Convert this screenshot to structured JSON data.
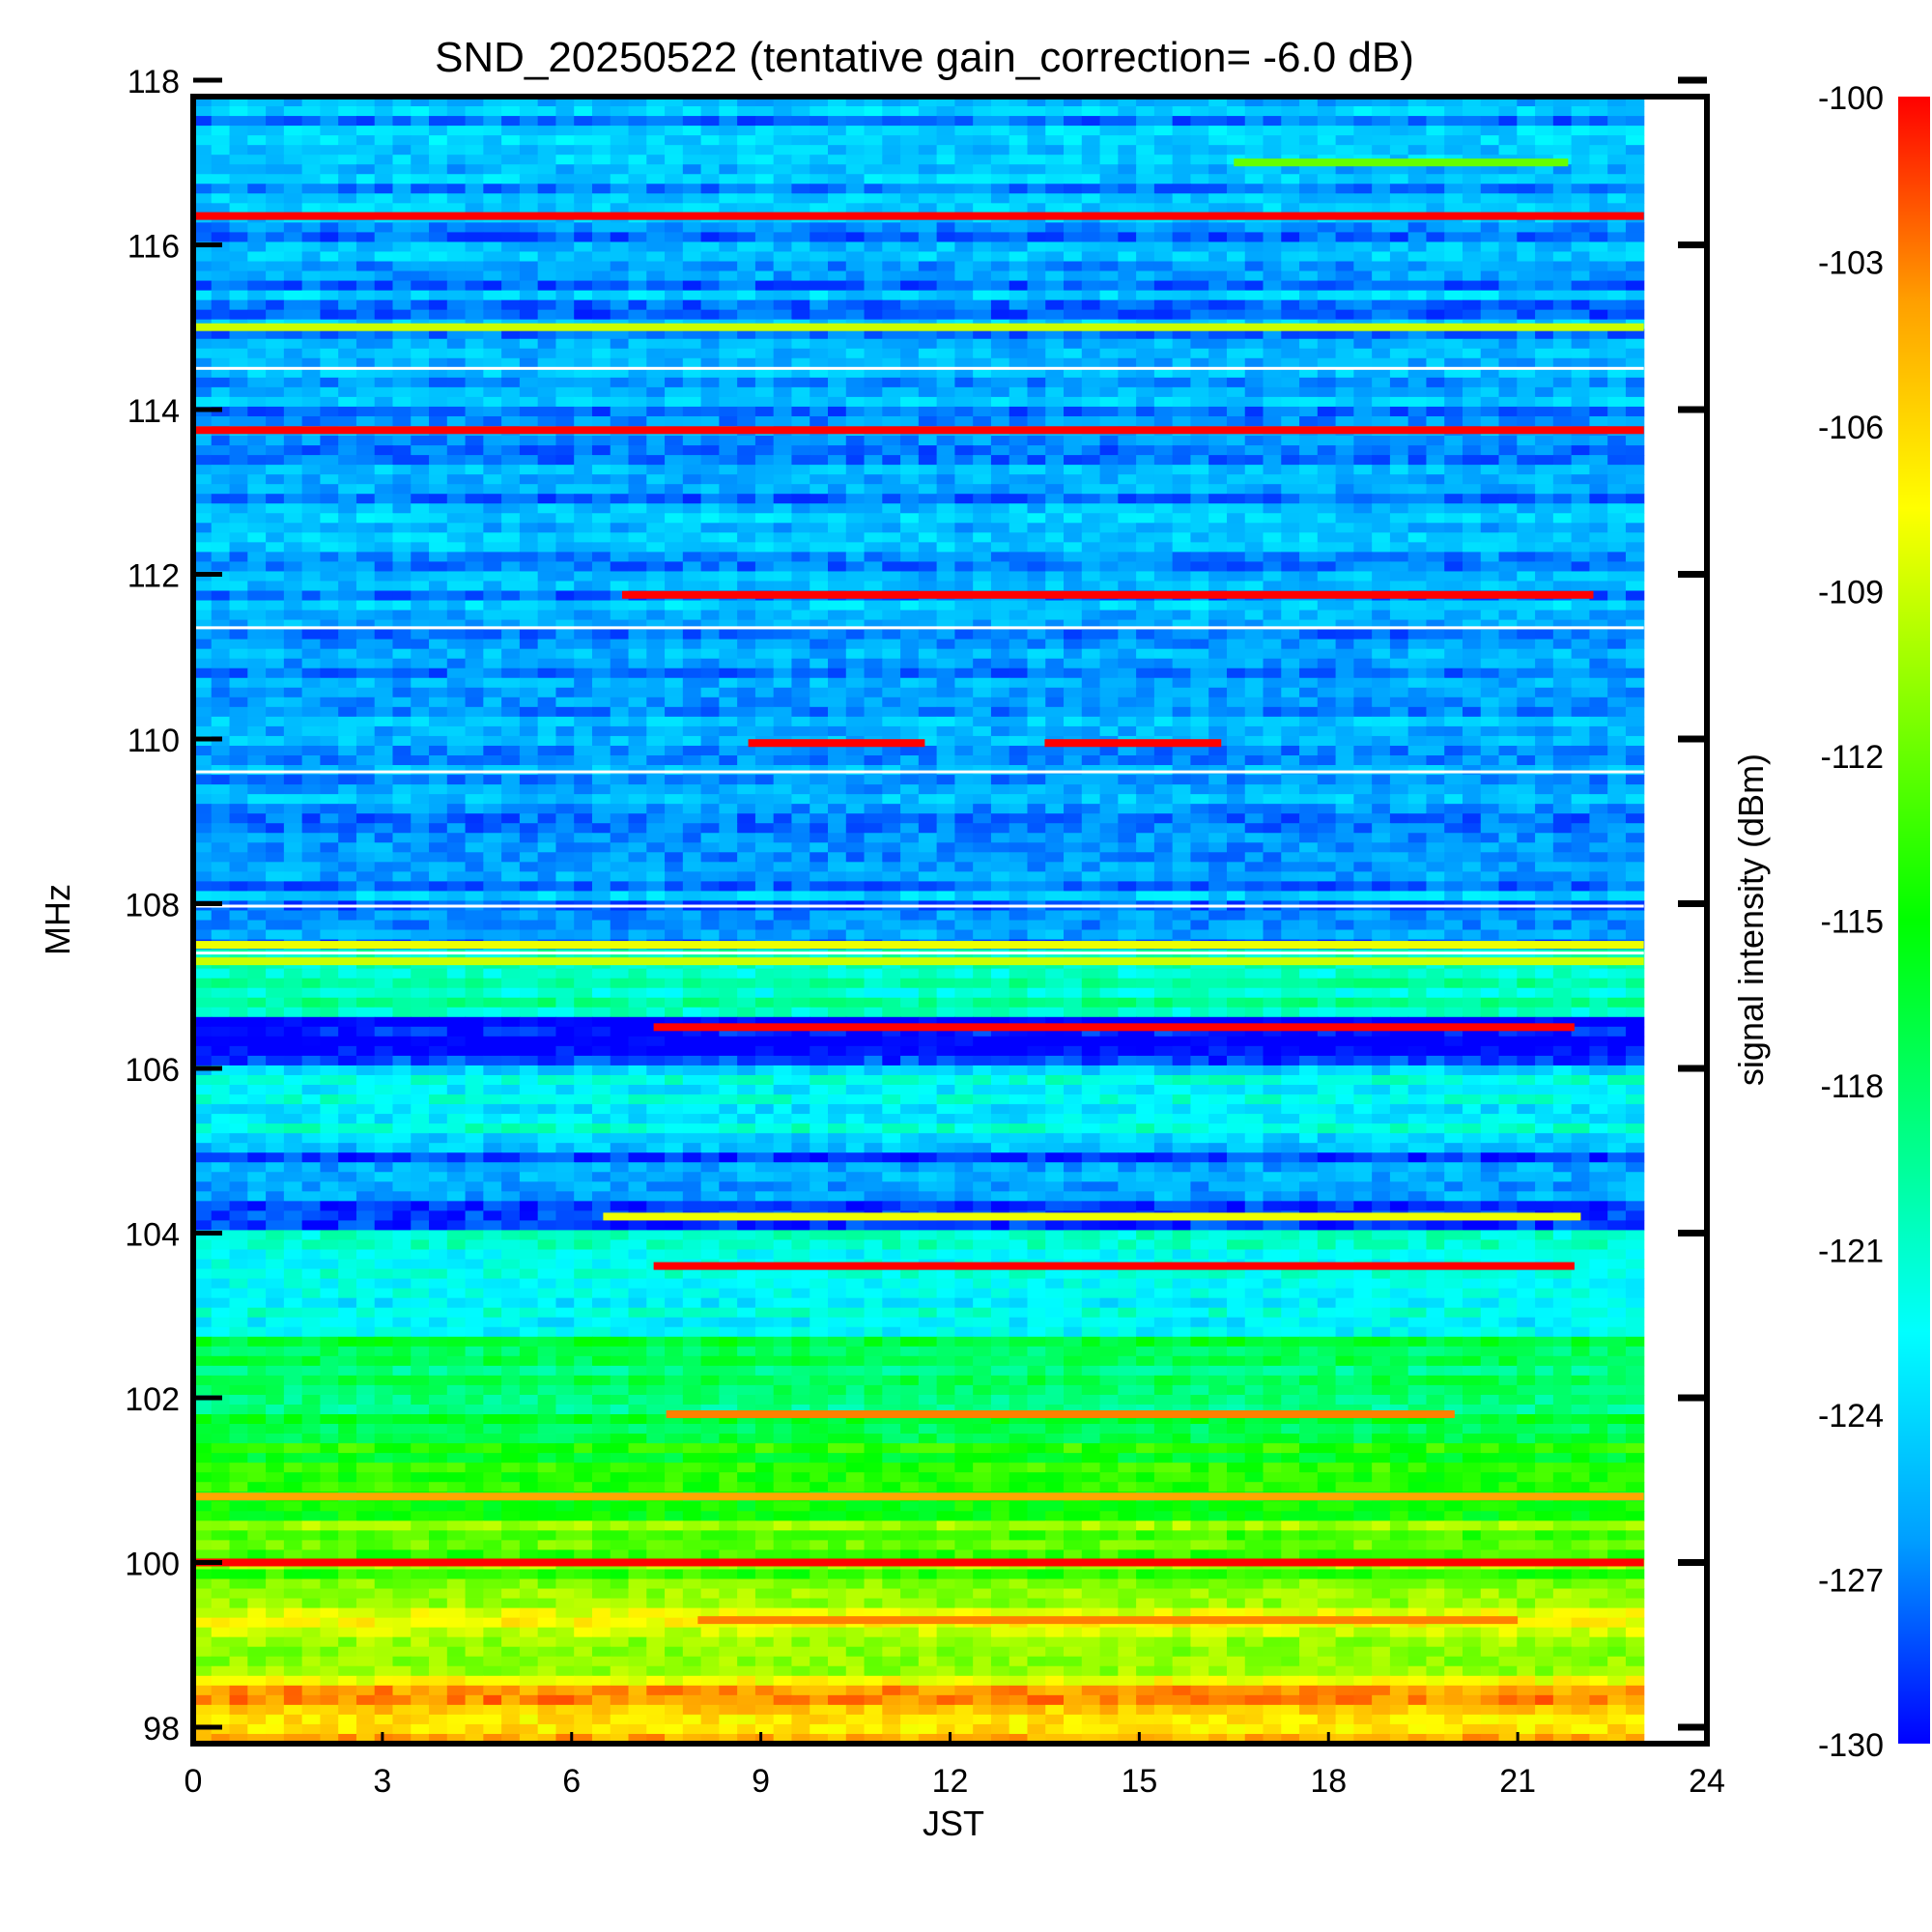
{
  "chart_data": {
    "type": "heatmap",
    "title": "SND_20250522 (tentative gain_correction= -6.0 dB)",
    "xlabel": "JST",
    "ylabel": "MHz",
    "colorbar_label": "signal intensity (dBm)",
    "x_ticks": [
      "0",
      "3",
      "6",
      "9",
      "12",
      "15",
      "18",
      "21",
      "24"
    ],
    "y_ticks": [
      "98",
      "100",
      "102",
      "104",
      "106",
      "108",
      "110",
      "112",
      "114",
      "116",
      "118"
    ],
    "colorbar_ticks": [
      "-100",
      "-103",
      "-106",
      "-109",
      "-112",
      "-115",
      "-118",
      "-121",
      "-124",
      "-127",
      "-130"
    ],
    "xlim": [
      0,
      24
    ],
    "ylim": [
      97.8,
      117.8
    ],
    "clim": [
      -130,
      -100
    ],
    "data_end_hour": 23,
    "colormap": [
      "#0000ff",
      "#00a0ff",
      "#00ffff",
      "#00ff80",
      "#00ff00",
      "#80ff00",
      "#ffff00",
      "#ffa000",
      "#ff0000"
    ],
    "background_bands": [
      {
        "freq_min": 97.8,
        "freq_max": 98.5,
        "level": -105
      },
      {
        "freq_min": 98.5,
        "freq_max": 99.5,
        "level": -109
      },
      {
        "freq_min": 99.5,
        "freq_max": 100.5,
        "level": -112
      },
      {
        "freq_min": 100.5,
        "freq_max": 101.5,
        "level": -115
      },
      {
        "freq_min": 101.5,
        "freq_max": 102.7,
        "level": -118
      },
      {
        "freq_min": 102.7,
        "freq_max": 104.0,
        "level": -122
      },
      {
        "freq_min": 104.0,
        "freq_max": 105.0,
        "level": -127
      },
      {
        "freq_min": 105.0,
        "freq_max": 106.0,
        "level": -123
      },
      {
        "freq_min": 106.0,
        "freq_max": 106.6,
        "level": -130
      },
      {
        "freq_min": 106.6,
        "freq_max": 107.5,
        "level": -120
      },
      {
        "freq_min": 107.5,
        "freq_max": 117.8,
        "level": -126
      }
    ],
    "strong_signals": [
      {
        "freq": 116.35,
        "start": 0,
        "end": 23,
        "level": -100
      },
      {
        "freq": 115.0,
        "start": 0,
        "end": 23,
        "level": -109
      },
      {
        "freq": 113.75,
        "start": 0,
        "end": 23,
        "level": -100
      },
      {
        "freq": 111.75,
        "start": 6.8,
        "end": 22.2,
        "level": -100
      },
      {
        "freq": 109.95,
        "start": 8.8,
        "end": 11.6,
        "level": -100
      },
      {
        "freq": 109.95,
        "start": 13.5,
        "end": 16.3,
        "level": -100
      },
      {
        "freq": 107.3,
        "start": 0,
        "end": 23,
        "level": -109
      },
      {
        "freq": 107.5,
        "start": 0,
        "end": 23,
        "level": -108
      },
      {
        "freq": 106.5,
        "start": 7.3,
        "end": 21.9,
        "level": -100
      },
      {
        "freq": 103.6,
        "start": 7.3,
        "end": 21.9,
        "level": -100
      },
      {
        "freq": 100.8,
        "start": 0,
        "end": 23,
        "level": -104
      },
      {
        "freq": 100.0,
        "start": 0,
        "end": 23,
        "level": -100
      },
      {
        "freq": 117.0,
        "start": 16.5,
        "end": 21.8,
        "level": -112
      },
      {
        "freq": 104.2,
        "start": 6.5,
        "end": 22,
        "level": -108
      },
      {
        "freq": 101.8,
        "start": 7.5,
        "end": 20,
        "level": -103
      },
      {
        "freq": 99.3,
        "start": 8,
        "end": 21,
        "level": -103
      }
    ]
  }
}
